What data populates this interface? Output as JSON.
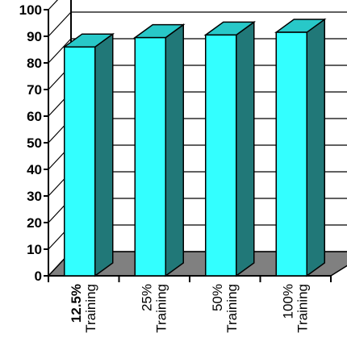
{
  "chart_data": {
    "type": "bar",
    "style": "3d",
    "title": "",
    "xlabel": "",
    "ylabel": "",
    "ylim": [
      0,
      100
    ],
    "yticks": [
      0,
      10,
      20,
      30,
      40,
      50,
      60,
      70,
      80,
      90,
      100
    ],
    "grid": true,
    "categories": [
      {
        "line1": "12.5%",
        "line2": "Training",
        "bold_first_line": true
      },
      {
        "line1": "25%",
        "line2": "Training",
        "bold_first_line": false
      },
      {
        "line1": "50%",
        "line2": "Training",
        "bold_first_line": false
      },
      {
        "line1": "100%",
        "line2": "Training",
        "bold_first_line": false
      }
    ],
    "values": [
      86,
      89.5,
      90.5,
      91.5
    ],
    "colors": {
      "bar_front": "#33FFFF",
      "bar_top": "#28C8C8",
      "bar_side": "#217878",
      "floor": "#808080"
    }
  }
}
